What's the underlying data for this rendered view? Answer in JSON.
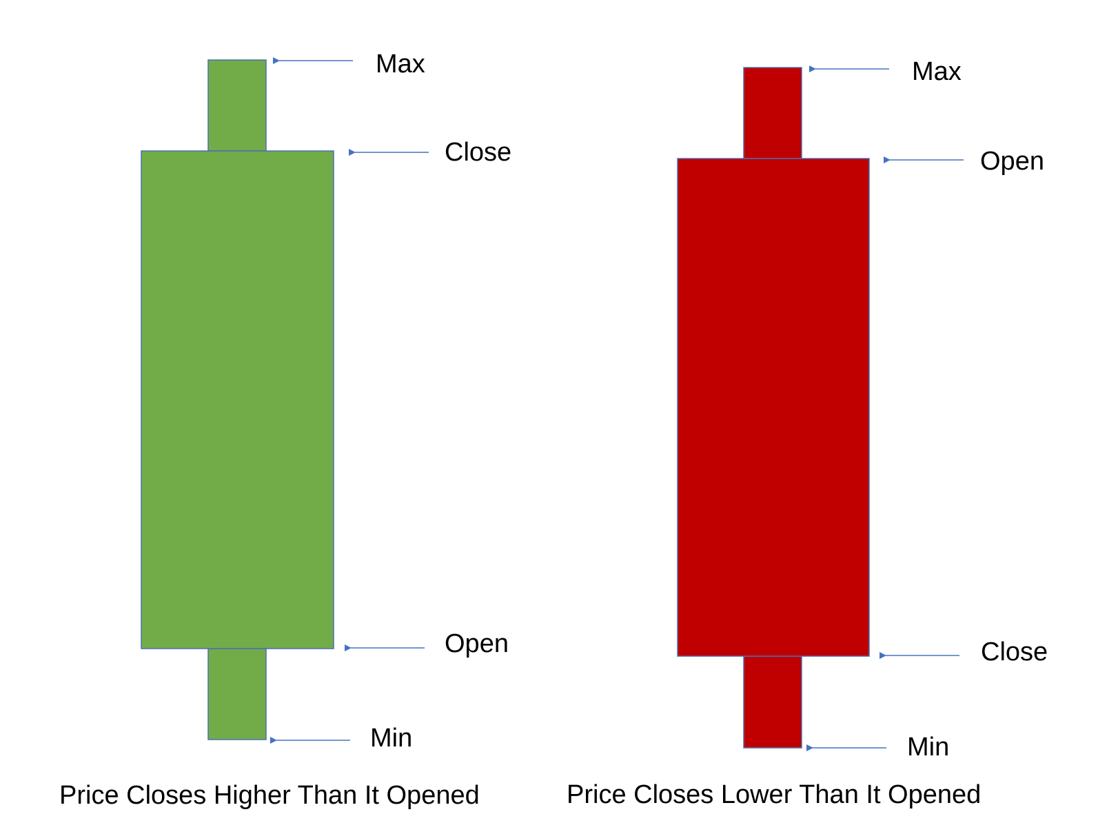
{
  "colors": {
    "bullish": "#72ac48",
    "bearish": "#c00000",
    "outline": "#4a6fb5",
    "arrow": "#4472c4"
  },
  "candles": [
    {
      "name": "bullish",
      "caption": "Price Closes Higher Than It Opened",
      "labels": {
        "max": "Max",
        "body_top": "Close",
        "body_bottom": "Open",
        "min": "Min"
      }
    },
    {
      "name": "bearish",
      "caption": "Price Closes Lower Than It Opened",
      "labels": {
        "max": "Max",
        "body_top": "Open",
        "body_bottom": "Close",
        "min": "Min"
      }
    }
  ]
}
